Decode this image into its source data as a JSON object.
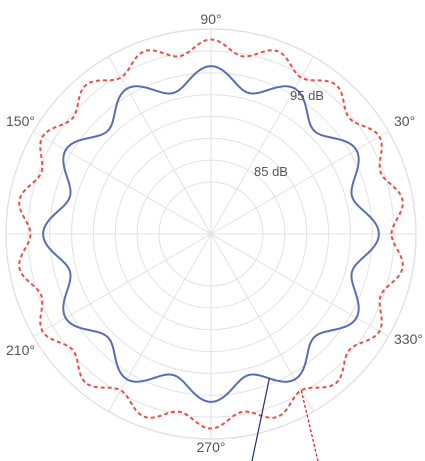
{
  "chart_data": {
    "type": "polar",
    "grid": true,
    "angle_tick_labels": [
      {
        "deg": 90,
        "label": "90°"
      },
      {
        "deg": 30,
        "label": "30°"
      },
      {
        "deg": 150,
        "label": "150°"
      },
      {
        "deg": 210,
        "label": "210°"
      },
      {
        "deg": 270,
        "label": "270°"
      },
      {
        "deg": 330,
        "label": "330°"
      }
    ],
    "radial_labels": [
      {
        "value": 85,
        "label": "85 dB"
      },
      {
        "value": 95,
        "label": "95 dB"
      }
    ],
    "radial_grid_values": [
      70,
      75,
      80,
      85,
      90,
      95,
      100
    ],
    "rmin": 65,
    "rmax": 100,
    "spoke_step_deg": 30,
    "series": [
      {
        "style": "solid",
        "color": "#5a6db0",
        "base_value": 89.0,
        "amplitude": 2.5,
        "lobes": 12,
        "phase_deg": 90
      },
      {
        "style": "dashed",
        "color": "#e8504a",
        "base_value": 96.0,
        "amplitude": 1.6,
        "lobes": 18,
        "phase_deg": 90
      }
    ],
    "annotations": [
      {
        "series_index": 0,
        "angle_deg": 292,
        "color": "#1e2a8a",
        "style": "solid"
      },
      {
        "series_index": 1,
        "angle_deg": 300,
        "color": "#d21f1f",
        "style": "dashed"
      }
    ]
  }
}
